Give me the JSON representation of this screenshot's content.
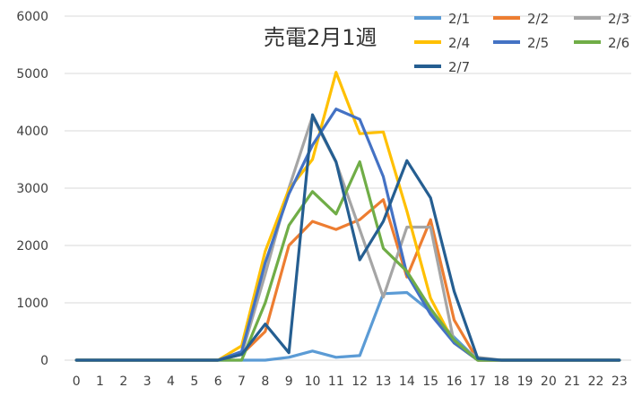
{
  "chart_data": {
    "type": "line",
    "title": "売電2月1週",
    "xlabel": "",
    "ylabel": "",
    "ylim": [
      0,
      6000
    ],
    "yticks": [
      0,
      1000,
      2000,
      3000,
      4000,
      5000,
      6000
    ],
    "x": [
      0,
      1,
      2,
      3,
      4,
      5,
      6,
      7,
      8,
      9,
      10,
      11,
      12,
      13,
      14,
      15,
      16,
      17,
      18,
      19,
      20,
      21,
      22,
      23
    ],
    "grid": "horizontal",
    "legend_position": "top-right",
    "series": [
      {
        "name": "2/1",
        "color": "#5b9bd5",
        "values": [
          0,
          0,
          0,
          0,
          0,
          0,
          0,
          0,
          0,
          50,
          160,
          50,
          80,
          1160,
          1180,
          850,
          400,
          0,
          0,
          0,
          0,
          0,
          0,
          0
        ]
      },
      {
        "name": "2/2",
        "color": "#ed7d31",
        "values": [
          0,
          0,
          0,
          0,
          0,
          0,
          0,
          100,
          500,
          2000,
          2420,
          2280,
          2450,
          2800,
          1450,
          2450,
          700,
          0,
          0,
          0,
          0,
          0,
          0,
          0
        ]
      },
      {
        "name": "2/3",
        "color": "#a5a5a5",
        "values": [
          0,
          0,
          0,
          0,
          0,
          0,
          0,
          100,
          1500,
          3000,
          4250,
          3450,
          2280,
          1100,
          2320,
          2320,
          300,
          50,
          0,
          0,
          0,
          0,
          0,
          0
        ]
      },
      {
        "name": "2/4",
        "color": "#ffc000",
        "values": [
          0,
          0,
          0,
          0,
          0,
          0,
          0,
          250,
          1900,
          2980,
          3500,
          5020,
          3950,
          3980,
          2600,
          1080,
          300,
          0,
          0,
          0,
          0,
          0,
          0,
          0
        ]
      },
      {
        "name": "2/5",
        "color": "#4472c4",
        "values": [
          0,
          0,
          0,
          0,
          0,
          0,
          0,
          150,
          1700,
          2900,
          3750,
          4380,
          4200,
          3200,
          1500,
          800,
          300,
          0,
          0,
          0,
          0,
          0,
          0,
          0
        ]
      },
      {
        "name": "2/6",
        "color": "#70ad47",
        "values": [
          0,
          0,
          0,
          0,
          0,
          0,
          0,
          0,
          1000,
          2350,
          2940,
          2550,
          3460,
          1950,
          1550,
          900,
          350,
          0,
          0,
          0,
          0,
          0,
          0,
          0
        ]
      },
      {
        "name": "2/7",
        "color": "#255e91",
        "values": [
          0,
          0,
          0,
          0,
          0,
          0,
          0,
          100,
          630,
          130,
          4280,
          3460,
          1750,
          2420,
          3480,
          2830,
          1200,
          30,
          0,
          0,
          0,
          0,
          0,
          0
        ]
      }
    ]
  }
}
